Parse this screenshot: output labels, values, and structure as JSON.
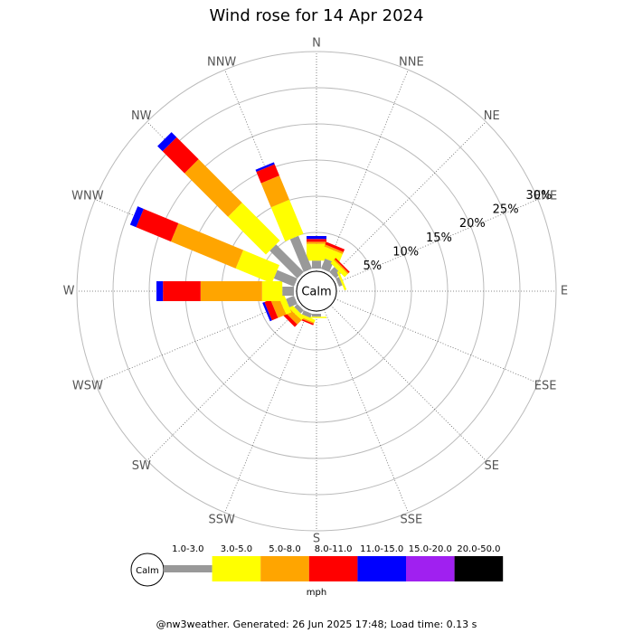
{
  "chart_data": {
    "type": "windrose",
    "title": "Wind rose for 14 Apr 2024",
    "categories": [
      "N",
      "NNE",
      "NE",
      "ENE",
      "E",
      "ESE",
      "SE",
      "SSE",
      "S",
      "SSW",
      "SW",
      "WSW",
      "W",
      "WNW",
      "NW",
      "NNW"
    ],
    "calm_label": "Calm",
    "unit": "mph",
    "ylim": [
      0,
      30
    ],
    "yticks": [
      {
        "value": 5,
        "label": "5%"
      },
      {
        "value": 10,
        "label": "10%"
      },
      {
        "value": 15,
        "label": "15%"
      },
      {
        "value": 20,
        "label": "20%"
      },
      {
        "value": 25,
        "label": "25%"
      },
      {
        "value": 30,
        "label": "30%"
      }
    ],
    "series": [
      {
        "name": "1.0-3.0",
        "color": "#999999",
        "values": [
          1.1,
          1.5,
          1.0,
          0.5,
          0,
          0,
          0,
          0,
          0.4,
          0.6,
          0.6,
          1.2,
          1.6,
          3.0,
          5.4,
          4.9
        ]
      },
      {
        "name": "3.0-5.0",
        "color": "#ffff00",
        "values": [
          2.3,
          1.5,
          0.6,
          0.3,
          0,
          0,
          0,
          0,
          0.2,
          0.4,
          0.6,
          0.8,
          2.8,
          5.4,
          7.4,
          5.1
        ]
      },
      {
        "name": "5.0-8.0",
        "color": "#ffa500",
        "values": [
          0.3,
          0.3,
          0.2,
          0,
          0,
          0,
          0,
          0,
          0,
          0.2,
          0.8,
          1.2,
          8.5,
          9.7,
          8.5,
          3.6
        ]
      },
      {
        "name": "8.0-11.0",
        "color": "#ff0000",
        "values": [
          0.4,
          0.4,
          0.2,
          0,
          0,
          0,
          0,
          0,
          0,
          0.2,
          0.5,
          0.9,
          5.2,
          5.2,
          4.3,
          1.7
        ]
      },
      {
        "name": "11.0-15.0",
        "color": "#0000ff",
        "values": [
          0.4,
          0,
          0,
          0,
          0,
          0,
          0,
          0,
          0,
          0,
          0,
          0.3,
          0.9,
          0.9,
          1.0,
          0.3
        ]
      },
      {
        "name": "15.0-20.0",
        "color": "#a020f0",
        "values": [
          0,
          0,
          0,
          0,
          0,
          0,
          0,
          0,
          0,
          0,
          0,
          0,
          0,
          0,
          0,
          0
        ]
      },
      {
        "name": "20.0-50.0",
        "color": "#000000",
        "values": [
          0,
          0,
          0,
          0,
          0,
          0,
          0,
          0,
          0,
          0,
          0,
          0,
          0,
          0,
          0,
          0
        ]
      }
    ]
  },
  "footer": "@nw3weather. Generated: 26 Jun 2025 17:48; Load time: 0.13 s"
}
